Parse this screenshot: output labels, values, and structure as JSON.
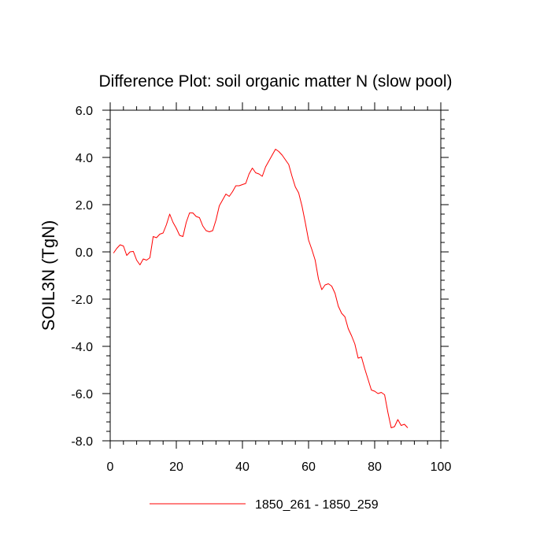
{
  "chart_data": {
    "type": "line",
    "title": "Difference Plot: soil organic matter N (slow pool)",
    "xlabel": "",
    "ylabel": "SOIL3N  (TgN)",
    "xlim": [
      0,
      100
    ],
    "ylim": [
      -8,
      6
    ],
    "x_ticks": [
      0,
      20,
      40,
      60,
      80,
      100
    ],
    "x_tick_labels": [
      "0",
      "20",
      "40",
      "60",
      "80",
      "100"
    ],
    "y_ticks": [
      -8,
      -6,
      -4,
      -2,
      0,
      2,
      4,
      6
    ],
    "y_tick_labels": [
      "-8.0",
      "-6.0",
      "-4.0",
      "-2.0",
      "0.0",
      "2.0",
      "4.0",
      "6.0"
    ],
    "grid": false,
    "legend_position": "bottom-center",
    "series": [
      {
        "name": "1850_261 - 1850_259",
        "color": "#ff0000",
        "x": [
          1,
          2,
          3,
          4,
          5,
          6,
          7,
          8,
          9,
          10,
          11,
          12,
          13,
          14,
          15,
          16,
          17,
          18,
          19,
          20,
          21,
          22,
          23,
          24,
          25,
          26,
          27,
          28,
          29,
          30,
          31,
          32,
          33,
          34,
          35,
          36,
          37,
          38,
          39,
          40,
          41,
          42,
          43,
          44,
          45,
          46,
          47,
          48,
          49,
          50,
          51,
          52,
          53,
          54,
          55,
          56,
          57,
          58,
          59,
          60,
          61,
          62,
          63,
          64,
          65,
          66,
          67,
          68,
          69,
          70,
          71,
          72,
          73,
          74,
          75,
          76,
          77,
          78,
          79,
          80,
          81,
          82,
          83,
          84,
          85,
          86,
          87,
          88,
          89,
          90
        ],
        "y": [
          -0.05,
          0.15,
          0.3,
          0.25,
          -0.15,
          0.0,
          0.02,
          -0.35,
          -0.55,
          -0.3,
          -0.35,
          -0.25,
          0.65,
          0.6,
          0.75,
          0.8,
          1.15,
          1.6,
          1.25,
          1.0,
          0.7,
          0.65,
          1.25,
          1.65,
          1.65,
          1.5,
          1.45,
          1.1,
          0.9,
          0.85,
          0.9,
          1.35,
          1.95,
          2.2,
          2.45,
          2.35,
          2.55,
          2.8,
          2.8,
          2.85,
          2.9,
          3.3,
          3.55,
          3.35,
          3.3,
          3.2,
          3.6,
          3.85,
          4.1,
          4.35,
          4.25,
          4.1,
          3.9,
          3.7,
          3.2,
          2.75,
          2.5,
          1.95,
          1.25,
          0.5,
          0.1,
          -0.35,
          -1.15,
          -1.6,
          -1.4,
          -1.35,
          -1.45,
          -1.75,
          -2.3,
          -2.6,
          -2.75,
          -3.25,
          -3.55,
          -3.9,
          -4.5,
          -4.45,
          -4.95,
          -5.4,
          -5.85,
          -5.9,
          -6.0,
          -5.95,
          -6.05,
          -6.8,
          -7.45,
          -7.4,
          -7.1,
          -7.35,
          -7.3,
          -7.45
        ]
      }
    ]
  }
}
